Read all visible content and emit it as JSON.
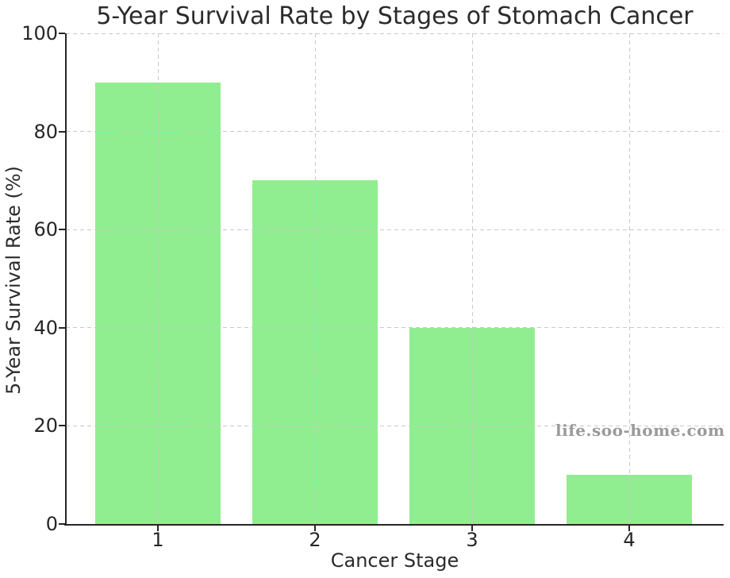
{
  "chart_data": {
    "type": "bar",
    "title": "5-Year Survival Rate by Stages of Stomach Cancer",
    "xlabel": "Cancer Stage",
    "ylabel": "5-Year Survival Rate (%)",
    "categories": [
      "1",
      "2",
      "3",
      "4"
    ],
    "values": [
      90,
      70,
      40,
      10
    ],
    "ylim": [
      0,
      100
    ],
    "yticks": [
      0,
      20,
      40,
      60,
      80,
      100
    ],
    "bar_color": "#90EE90",
    "grid": true,
    "grid_line_style": "dashed",
    "legend_position": "none",
    "watermark": "life.soo-home.com"
  },
  "colors": {
    "background": "#ffffff",
    "bar": "#90EE90",
    "gridline": "#c9c9c9",
    "axis": "#262626",
    "text": "#2b2b2b",
    "watermark": "#9a9a9a"
  }
}
